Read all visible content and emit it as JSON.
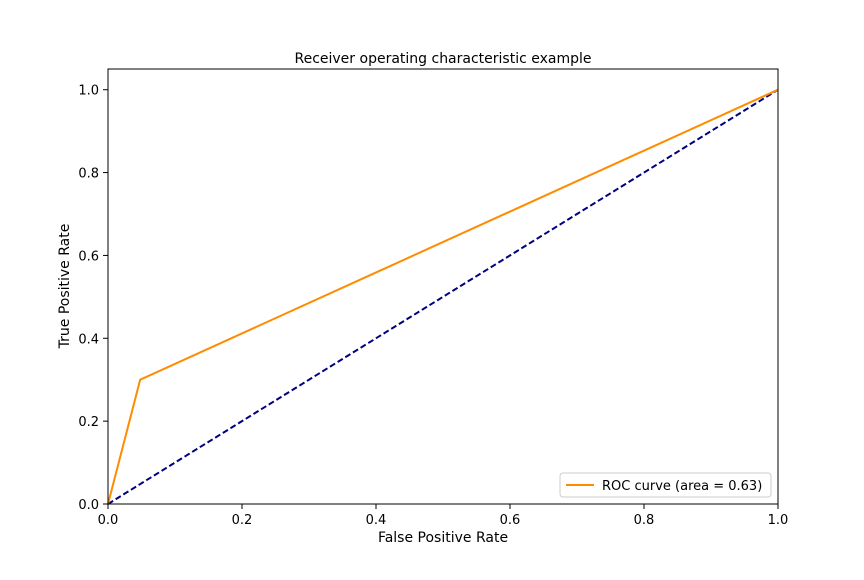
{
  "chart_data": {
    "type": "line",
    "title": "Receiver operating characteristic example",
    "xlabel": "False Positive Rate",
    "ylabel": "True Positive Rate",
    "xlim": [
      0.0,
      1.0
    ],
    "ylim": [
      0.0,
      1.05
    ],
    "xticks": [
      "0.0",
      "0.2",
      "0.4",
      "0.6",
      "0.8",
      "1.0"
    ],
    "yticks": [
      "0.0",
      "0.2",
      "0.4",
      "0.6",
      "0.8",
      "1.0"
    ],
    "xtick_values": [
      0.0,
      0.2,
      0.4,
      0.6,
      0.8,
      1.0
    ],
    "ytick_values": [
      0.0,
      0.2,
      0.4,
      0.6,
      0.8,
      1.0
    ],
    "grid": false,
    "legend_position": "lower right",
    "series": [
      {
        "name": "ROC curve (area = 0.63)",
        "color": "#ff8c00",
        "line_style": "solid",
        "x": [
          0.0,
          0.048,
          1.0
        ],
        "y": [
          0.0,
          0.3,
          1.0
        ]
      },
      {
        "color": "#000080",
        "line_style": "dashed",
        "x": [
          0.0,
          1.0
        ],
        "y": [
          0.0,
          1.0
        ]
      }
    ]
  }
}
